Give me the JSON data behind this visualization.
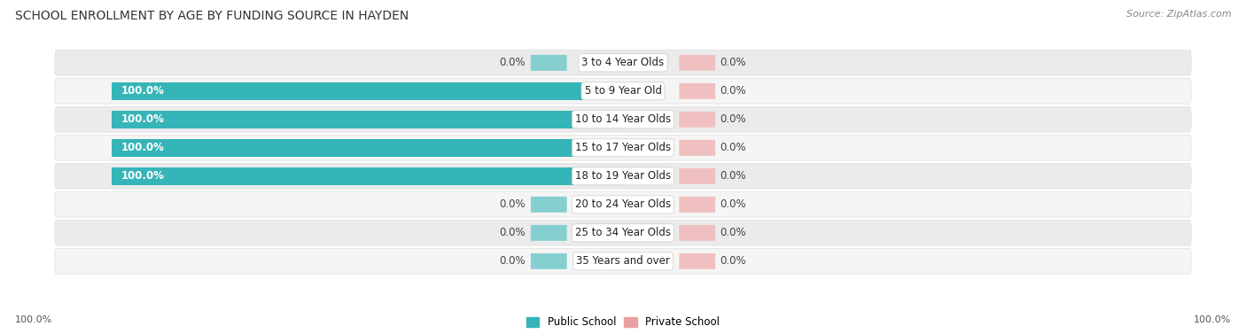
{
  "title": "SCHOOL ENROLLMENT BY AGE BY FUNDING SOURCE IN HAYDEN",
  "source": "Source: ZipAtlas.com",
  "categories": [
    "3 to 4 Year Olds",
    "5 to 9 Year Old",
    "10 to 14 Year Olds",
    "15 to 17 Year Olds",
    "18 to 19 Year Olds",
    "20 to 24 Year Olds",
    "25 to 34 Year Olds",
    "35 Years and over"
  ],
  "public_values": [
    0.0,
    100.0,
    100.0,
    100.0,
    100.0,
    0.0,
    0.0,
    0.0
  ],
  "private_values": [
    0.0,
    0.0,
    0.0,
    0.0,
    0.0,
    0.0,
    0.0,
    0.0
  ],
  "public_color": "#35b5b8",
  "private_color": "#e8a0a0",
  "public_color_zero": "#85cfd1",
  "private_color_zero": "#f0c0c0",
  "bg_color": "#ffffff",
  "row_bg_color": "#ebebeb",
  "row_bg_color_alt": "#f5f5f5",
  "title_fontsize": 10,
  "label_fontsize": 8.5,
  "legend_fontsize": 8.5,
  "axis_label_fontsize": 8
}
